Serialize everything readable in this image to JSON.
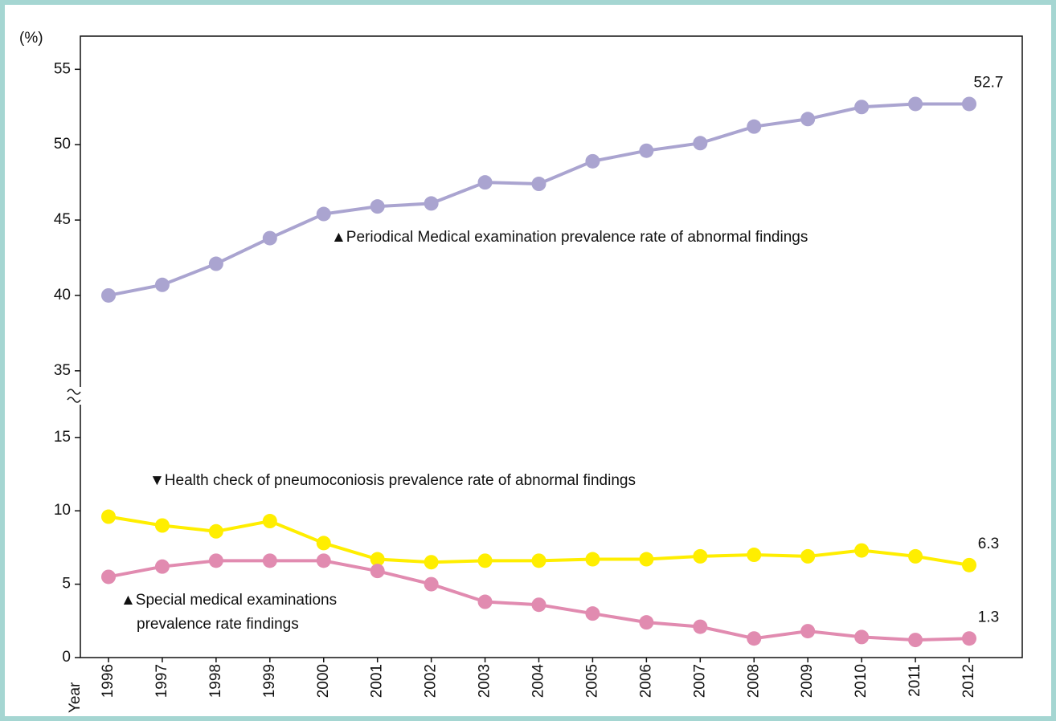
{
  "chart_data": {
    "type": "line",
    "y_unit_label": "(%)",
    "x_axis_label": "Year",
    "categories": [
      "1996",
      "1997",
      "1998",
      "1999",
      "2000",
      "2001",
      "2002",
      "2003",
      "2004",
      "2005",
      "2006",
      "2007",
      "2008",
      "2009",
      "2010",
      "2011",
      "2012"
    ],
    "ylim": [
      0,
      57.2
    ],
    "ybreak": [
      18,
      33.5
    ],
    "yticks": [
      0,
      5,
      10,
      15,
      35,
      40,
      45,
      50,
      55
    ],
    "series": [
      {
        "name": "▲Periodical Medical examination prevalence rate of abnormal findings",
        "color": "#aaa4d0",
        "values": [
          40.0,
          40.7,
          42.1,
          43.8,
          45.4,
          45.9,
          46.1,
          47.5,
          47.4,
          48.9,
          49.6,
          50.1,
          51.2,
          51.7,
          52.5,
          52.7,
          52.7
        ],
        "value_labels": [
          null,
          null,
          null,
          null,
          null,
          null,
          null,
          null,
          null,
          null,
          null,
          null,
          null,
          null,
          null,
          null,
          "52.7"
        ]
      },
      {
        "name": "▼Health check of pneumoconiosis prevalence rate of abnormal findings",
        "color": "#ffee00",
        "values": [
          9.6,
          9.0,
          8.6,
          9.3,
          7.8,
          6.7,
          6.5,
          6.6,
          6.6,
          6.7,
          6.7,
          6.9,
          7.0,
          6.9,
          7.3,
          6.9,
          6.3
        ],
        "value_labels": [
          null,
          null,
          null,
          null,
          null,
          null,
          null,
          null,
          null,
          null,
          null,
          null,
          null,
          null,
          null,
          null,
          "6.3"
        ]
      },
      {
        "name": "▲Special medical examinations prevalence rate findings",
        "color": "#e18bb0",
        "values": [
          5.5,
          6.2,
          6.6,
          6.6,
          6.6,
          5.9,
          5.0,
          3.8,
          3.6,
          3.0,
          2.4,
          2.1,
          1.3,
          1.8,
          1.4,
          1.2,
          1.3
        ],
        "value_labels": [
          null,
          null,
          null,
          null,
          null,
          null,
          null,
          null,
          null,
          null,
          null,
          null,
          null,
          null,
          null,
          null,
          "1.3"
        ]
      }
    ]
  }
}
